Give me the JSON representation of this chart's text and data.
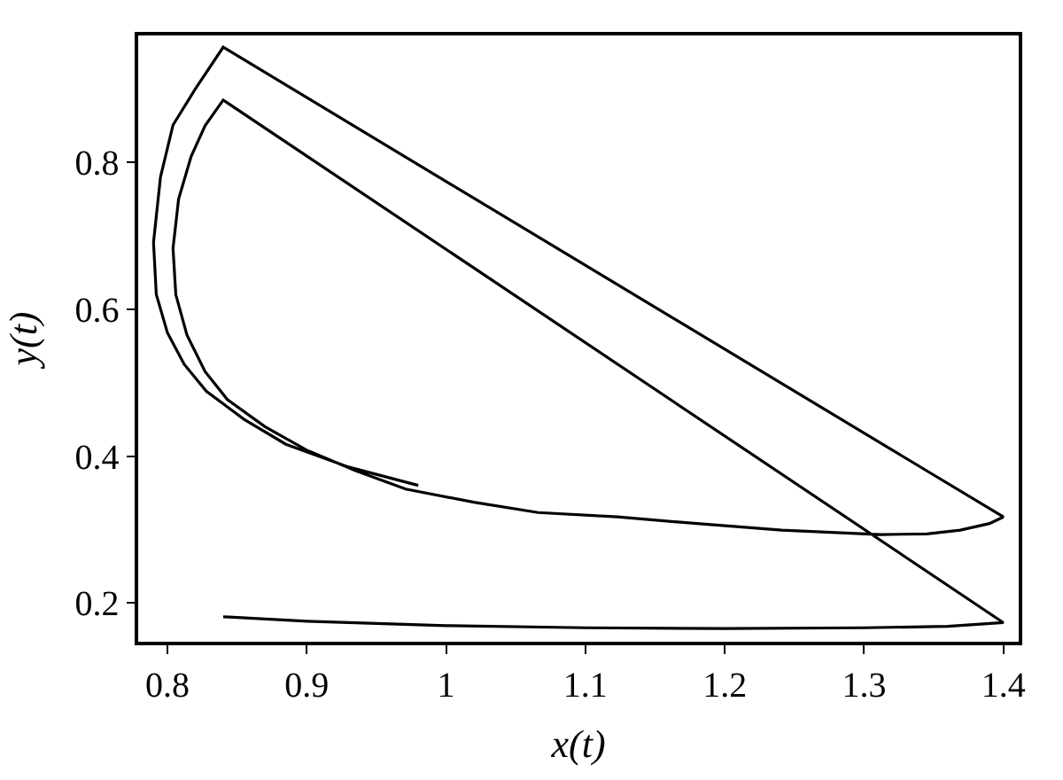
{
  "chart_data": {
    "type": "line",
    "xlabel": "x(t)",
    "ylabel": "y(t)",
    "xlim": [
      0.779,
      1.411
    ],
    "ylim": [
      0.147,
      0.973
    ],
    "xticks": [
      0.8,
      0.9,
      1,
      1.1,
      1.2,
      1.3,
      1.4
    ],
    "yticks": [
      0.2,
      0.4,
      0.6,
      0.8
    ],
    "marker": "none",
    "line_style": "solid",
    "series": [
      {
        "color": "#000000",
        "x": [
          0.84,
          0.9,
          1.0,
          1.1,
          1.2,
          1.3,
          1.36,
          1.4,
          0.84,
          0.827,
          0.817,
          0.808,
          0.804,
          0.806,
          0.814,
          0.827,
          0.843,
          0.87,
          0.9,
          0.935,
          0.971,
          1.02,
          1.066,
          1.123,
          1.18,
          1.241,
          1.312,
          1.345,
          1.369,
          1.39,
          1.4,
          0.84,
          0.82,
          0.804,
          0.795,
          0.79,
          0.792,
          0.8,
          0.812,
          0.828,
          0.855,
          0.885,
          0.93,
          0.98
        ],
        "values": [
          0.181,
          0.175,
          0.169,
          0.166,
          0.165,
          0.166,
          0.168,
          0.173,
          0.885,
          0.85,
          0.808,
          0.75,
          0.683,
          0.62,
          0.565,
          0.515,
          0.477,
          0.44,
          0.408,
          0.38,
          0.355,
          0.337,
          0.323,
          0.317,
          0.308,
          0.299,
          0.293,
          0.294,
          0.299,
          0.308,
          0.317,
          0.957,
          0.9,
          0.851,
          0.78,
          0.691,
          0.62,
          0.568,
          0.525,
          0.488,
          0.45,
          0.416,
          0.385,
          0.36
        ]
      }
    ]
  }
}
